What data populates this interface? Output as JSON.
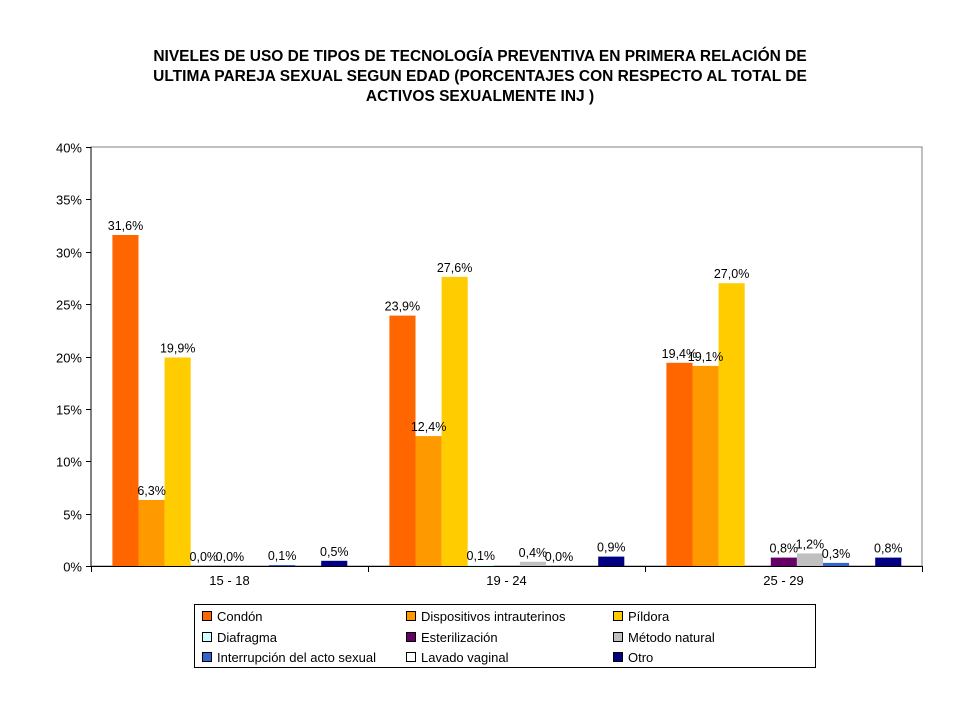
{
  "chart_data": {
    "type": "bar",
    "title_lines": [
      "NIVELES DE USO DE TIPOS DE TECNOLOGÍA PREVENTIVA EN PRIMERA RELACIÓN DE",
      "ULTIMA PAREJA SEXUAL SEGUN EDAD (PORCENTAJES CON RESPECTO AL TOTAL DE",
      "ACTIVOS SEXUALMENTE INJ )"
    ],
    "xlabel": "",
    "ylabel": "",
    "categories": [
      "15 - 18",
      "19 - 24",
      "25 - 29"
    ],
    "ylim": [
      0,
      40
    ],
    "y_ticks": [
      "0%",
      "5%",
      "10%",
      "15%",
      "20%",
      "25%",
      "30%",
      "35%",
      "40%"
    ],
    "grid": false,
    "legend_position": "bottom",
    "series": [
      {
        "name": "Condón",
        "color": "#FF6600",
        "values": [
          31.6,
          23.9,
          19.4
        ],
        "labels": [
          "31,6%",
          "23,9%",
          "19,4%"
        ]
      },
      {
        "name": "Dispositivos intrauterinos",
        "color": "#FF9900",
        "values": [
          6.3,
          12.4,
          19.1
        ],
        "labels": [
          "6,3%",
          "12,4%",
          "19,1%"
        ]
      },
      {
        "name": "Píldora",
        "color": "#FFCC00",
        "values": [
          19.9,
          27.6,
          27.0
        ],
        "labels": [
          "19,9%",
          "27,6%",
          "27,0%"
        ]
      },
      {
        "name": "Diafragma",
        "color": "#CCFFFF",
        "values": [
          0.0,
          0.1,
          null
        ],
        "labels": [
          "0,0%",
          "0,1%",
          null
        ]
      },
      {
        "name": "Esterilización",
        "color": "#660066",
        "values": [
          0.0,
          null,
          0.8
        ],
        "labels": [
          "0,0%",
          null,
          "0,8%"
        ]
      },
      {
        "name": "Método natural",
        "color": "#C0C0C0",
        "values": [
          null,
          0.4,
          1.2
        ],
        "labels": [
          null,
          "0,4%",
          "1,2%"
        ]
      },
      {
        "name": "Interrupción del acto sexual",
        "color": "#3366CC",
        "values": [
          0.1,
          0.0,
          0.3
        ],
        "labels": [
          "0,1%",
          "0,0%",
          "0,3%"
        ]
      },
      {
        "name": "Lavado vaginal",
        "color": "#FFFFFF",
        "values": [
          null,
          null,
          null
        ],
        "labels": [
          null,
          null,
          null
        ]
      },
      {
        "name": "Otro",
        "color": "#000080",
        "values": [
          0.5,
          0.9,
          0.8
        ],
        "labels": [
          "0,5%",
          "0,9%",
          "0,8%"
        ]
      }
    ]
  }
}
